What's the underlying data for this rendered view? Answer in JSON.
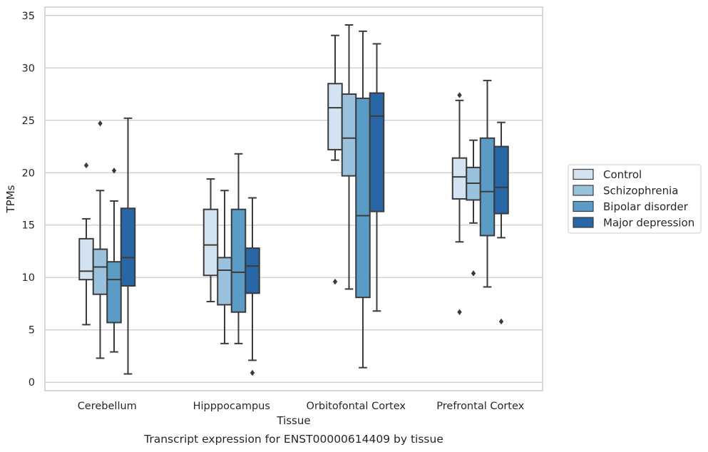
{
  "caption": "Transcript expression for ENST00000614409 by tissue",
  "chart_data": {
    "type": "box",
    "xlabel": "Tissue",
    "ylabel": "TPMs",
    "ylim": [
      -0.8,
      35.8
    ],
    "yticks": [
      0,
      5,
      10,
      15,
      20,
      25,
      30,
      35
    ],
    "grid": "horizontal",
    "legend_position": "right",
    "categories": [
      "Cerebellum",
      "Hipppocampus",
      "Orbitofontal Cortex",
      "Prefrontal Cortex"
    ],
    "series": [
      {
        "name": "Control",
        "color": "#d4e3f1",
        "boxes": [
          {
            "whislo": 5.5,
            "q1": 9.8,
            "med": 10.6,
            "q3": 13.7,
            "whishi": 15.6,
            "fliers": [
              20.7
            ]
          },
          {
            "whislo": 7.7,
            "q1": 10.2,
            "med": 13.1,
            "q3": 16.5,
            "whishi": 19.4,
            "fliers": []
          },
          {
            "whislo": 21.2,
            "q1": 22.2,
            "med": 26.2,
            "q3": 28.5,
            "whishi": 33.1,
            "fliers": [
              9.6
            ]
          },
          {
            "whislo": 13.4,
            "q1": 17.5,
            "med": 19.6,
            "q3": 21.4,
            "whishi": 26.9,
            "fliers": [
              27.4,
              6.7
            ]
          }
        ]
      },
      {
        "name": "Schizophrenia",
        "color": "#9bc2dd",
        "boxes": [
          {
            "whislo": 2.3,
            "q1": 8.4,
            "med": 11.0,
            "q3": 12.7,
            "whishi": 18.3,
            "fliers": [
              24.7
            ]
          },
          {
            "whislo": 3.7,
            "q1": 7.4,
            "med": 10.7,
            "q3": 11.9,
            "whishi": 18.3,
            "fliers": []
          },
          {
            "whislo": 8.9,
            "q1": 19.7,
            "med": 23.3,
            "q3": 27.5,
            "whishi": 34.1,
            "fliers": []
          },
          {
            "whislo": 15.2,
            "q1": 17.4,
            "med": 19.0,
            "q3": 20.5,
            "whishi": 23.1,
            "fliers": [
              10.4
            ]
          }
        ]
      },
      {
        "name": "Bipolar disorder",
        "color": "#5a9cc6",
        "boxes": [
          {
            "whislo": 2.9,
            "q1": 5.7,
            "med": 9.8,
            "q3": 11.5,
            "whishi": 17.3,
            "fliers": [
              20.2
            ]
          },
          {
            "whislo": 3.7,
            "q1": 6.7,
            "med": 10.5,
            "q3": 16.5,
            "whishi": 21.8,
            "fliers": []
          },
          {
            "whislo": 1.4,
            "q1": 8.1,
            "med": 15.9,
            "q3": 27.1,
            "whishi": 33.5,
            "fliers": []
          },
          {
            "whislo": 9.1,
            "q1": 14.0,
            "med": 18.2,
            "q3": 23.3,
            "whishi": 28.8,
            "fliers": []
          }
        ]
      },
      {
        "name": "Major depression",
        "color": "#2866a5",
        "boxes": [
          {
            "whislo": 0.8,
            "q1": 9.2,
            "med": 11.9,
            "q3": 16.6,
            "whishi": 25.2,
            "fliers": []
          },
          {
            "whislo": 2.1,
            "q1": 8.5,
            "med": 11.1,
            "q3": 12.8,
            "whishi": 17.6,
            "fliers": [
              0.9
            ]
          },
          {
            "whislo": 6.8,
            "q1": 16.3,
            "med": 25.4,
            "q3": 27.6,
            "whishi": 32.3,
            "fliers": []
          },
          {
            "whislo": 13.8,
            "q1": 16.1,
            "med": 18.6,
            "q3": 22.5,
            "whishi": 24.8,
            "fliers": [
              5.8
            ]
          }
        ]
      }
    ]
  }
}
